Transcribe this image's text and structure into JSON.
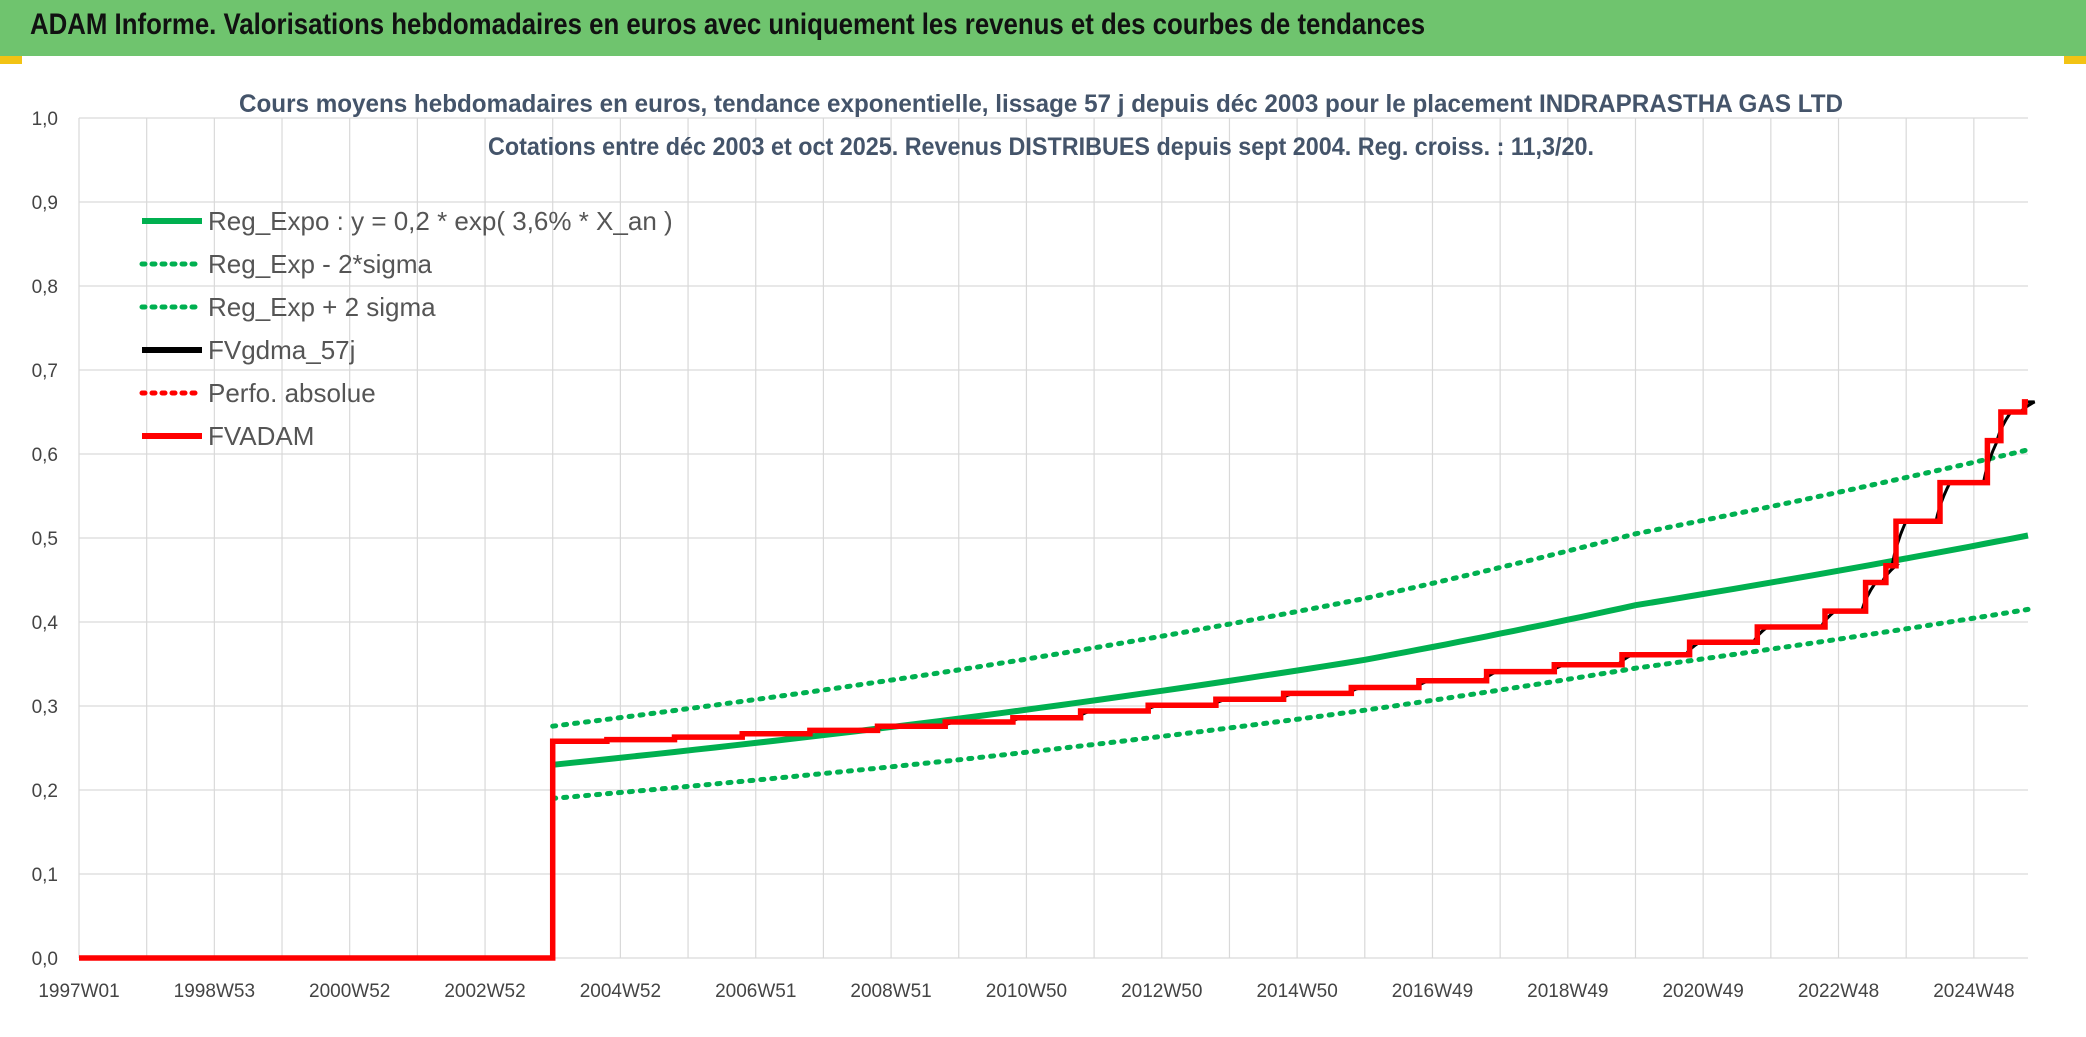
{
  "banner": {
    "title": "ADAM Informe. Valorisations hebdomadaires en euros avec uniquement les revenus et des courbes de tendances"
  },
  "colors": {
    "banner": "#6fc46e",
    "green": "#00b050",
    "red": "#ff0000",
    "black": "#000000",
    "accent": "#f2c314"
  },
  "chart_data": {
    "type": "line",
    "title": [
      "Cours moyens hebdomadaires en euros, tendance exponentielle, lissage 57 j depuis déc 2003 pour le placement INDRAPRASTHA GAS LTD",
      "Cotations entre déc 2003 et oct 2025. Revenus DISTRIBUES depuis sept 2004. Reg. croiss. : 11,3/20."
    ],
    "ylim": [
      0,
      1.0
    ],
    "y_ticks": [
      "0,0",
      "0,1",
      "0,2",
      "0,3",
      "0,4",
      "0,5",
      "0,6",
      "0,7",
      "0,8",
      "0,9",
      "1,0"
    ],
    "x_range_years": [
      1997.0,
      2025.8
    ],
    "x_ticks": [
      {
        "label": "1997W01",
        "t": 1997.0
      },
      {
        "label": "1998W53",
        "t": 1999.0
      },
      {
        "label": "2000W52",
        "t": 2001.0
      },
      {
        "label": "2002W52",
        "t": 2003.0
      },
      {
        "label": "2004W52",
        "t": 2005.0
      },
      {
        "label": "2006W51",
        "t": 2007.0
      },
      {
        "label": "2008W51",
        "t": 2009.0
      },
      {
        "label": "2010W50",
        "t": 2011.0
      },
      {
        "label": "2012W50",
        "t": 2013.0
      },
      {
        "label": "2014W50",
        "t": 2015.0
      },
      {
        "label": "2016W49",
        "t": 2017.0
      },
      {
        "label": "2018W49",
        "t": 2019.0
      },
      {
        "label": "2020W49",
        "t": 2021.0
      },
      {
        "label": "2022W48",
        "t": 2023.0
      },
      {
        "label": "2024W48",
        "t": 2025.0
      }
    ],
    "legend": [
      {
        "name": "Reg_Expo : y = 0,2 * exp( 3,6% *  X_an )",
        "color": "#00b050",
        "style": "solid"
      },
      {
        "name": "Reg_Exp - 2*sigma",
        "color": "#00b050",
        "style": "dotted"
      },
      {
        "name": "Reg_Exp + 2 sigma",
        "color": "#00b050",
        "style": "dotted"
      },
      {
        "name": "FVgdma_57j",
        "color": "#000000",
        "style": "solid"
      },
      {
        "name": "Perfo. absolue",
        "color": "#ff0000",
        "style": "dotted"
      },
      {
        "name": "FVADAM",
        "color": "#ff0000",
        "style": "solid"
      }
    ],
    "series": [
      {
        "name": "Reg_Expo : y = 0,2 * exp( 3,6% *  X_an )",
        "points": [
          [
            2004.0,
            0.23
          ],
          [
            2010.0,
            0.285
          ],
          [
            2016.0,
            0.355
          ],
          [
            2020.0,
            0.42
          ],
          [
            2025.8,
            0.503
          ]
        ]
      },
      {
        "name": "Reg_Exp - 2*sigma",
        "points": [
          [
            2004.0,
            0.19
          ],
          [
            2010.0,
            0.236
          ],
          [
            2016.0,
            0.295
          ],
          [
            2020.0,
            0.345
          ],
          [
            2025.8,
            0.415
          ]
        ]
      },
      {
        "name": "Reg_Exp + 2 sigma",
        "points": [
          [
            2004.0,
            0.276
          ],
          [
            2010.0,
            0.343
          ],
          [
            2016.0,
            0.428
          ],
          [
            2020.0,
            0.505
          ],
          [
            2025.8,
            0.605
          ]
        ]
      },
      {
        "name": "FVADAM",
        "steps": [
          [
            1997.0,
            0.0
          ],
          [
            2004.0,
            0.258
          ],
          [
            2004.8,
            0.26
          ],
          [
            2005.8,
            0.263
          ],
          [
            2006.8,
            0.267
          ],
          [
            2007.8,
            0.271
          ],
          [
            2008.8,
            0.276
          ],
          [
            2009.8,
            0.281
          ],
          [
            2010.8,
            0.286
          ],
          [
            2011.8,
            0.294
          ],
          [
            2012.8,
            0.301
          ],
          [
            2013.8,
            0.308
          ],
          [
            2014.8,
            0.315
          ],
          [
            2015.8,
            0.322
          ],
          [
            2016.8,
            0.33
          ],
          [
            2017.8,
            0.341
          ],
          [
            2018.8,
            0.349
          ],
          [
            2019.8,
            0.361
          ],
          [
            2020.8,
            0.376
          ],
          [
            2021.8,
            0.394
          ],
          [
            2022.8,
            0.413
          ],
          [
            2023.4,
            0.447
          ],
          [
            2023.7,
            0.467
          ],
          [
            2023.85,
            0.52
          ],
          [
            2024.5,
            0.566
          ],
          [
            2025.2,
            0.616
          ],
          [
            2025.4,
            0.65
          ],
          [
            2025.75,
            0.662
          ]
        ]
      }
    ]
  }
}
